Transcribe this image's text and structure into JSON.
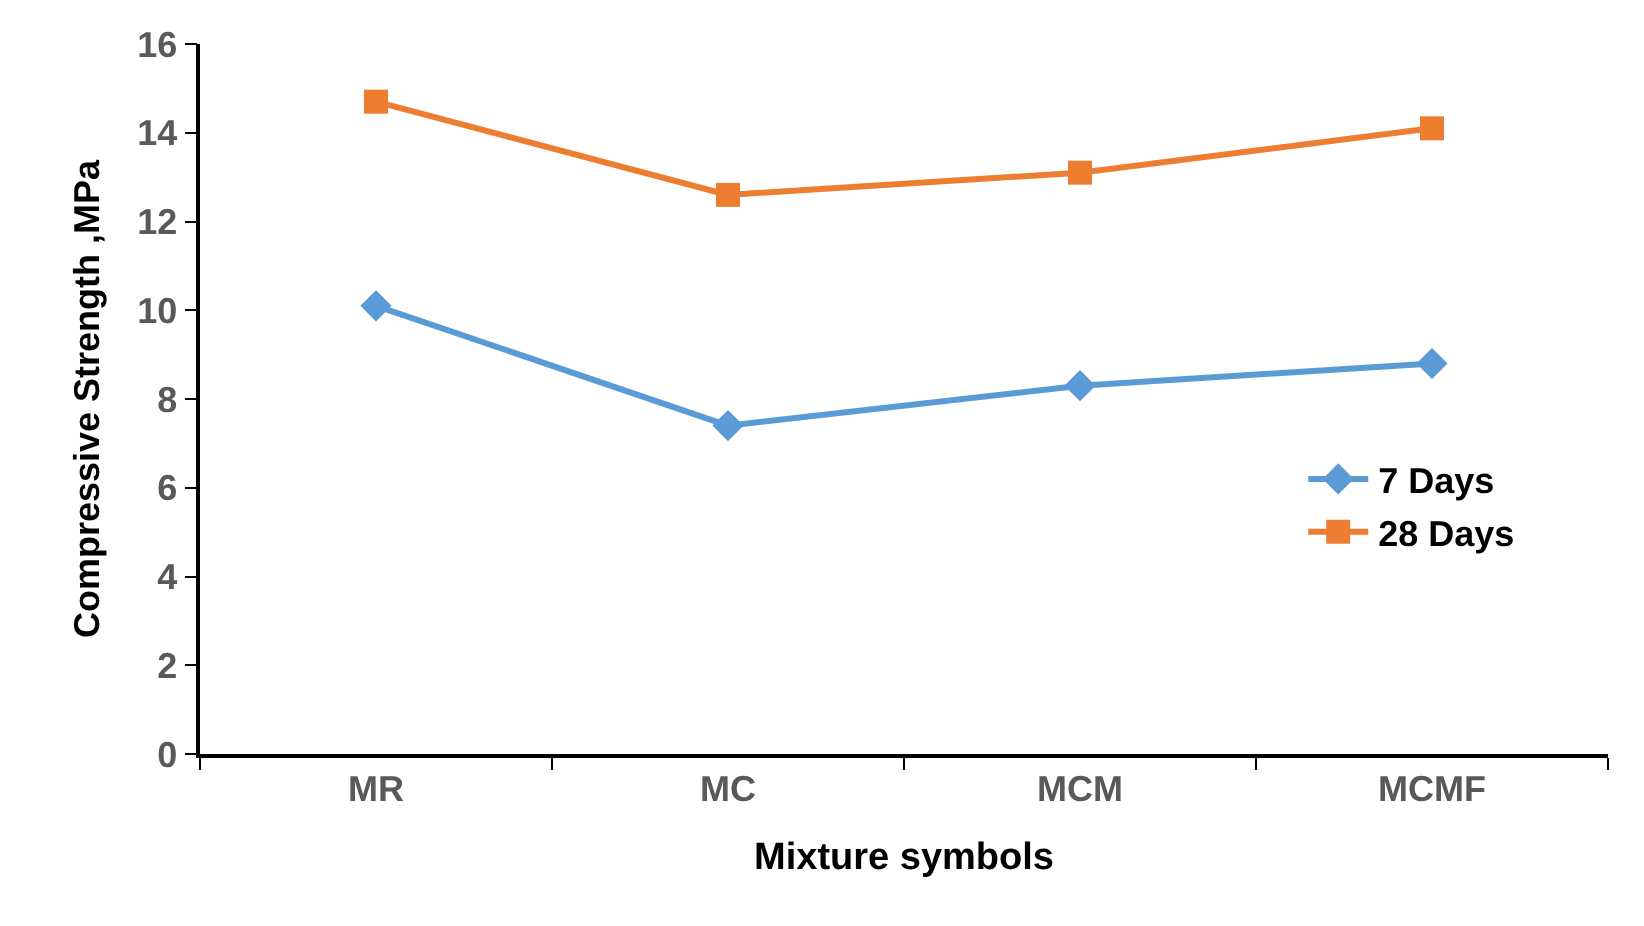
{
  "chart_data": {
    "type": "line",
    "xlabel": "Mixture symbols",
    "ylabel": "Compressive Strength ,MPa",
    "categories": [
      "MR",
      "MC",
      "MCM",
      "MCMF"
    ],
    "series": [
      {
        "name": "7 Days",
        "color": "#5b9bd5",
        "marker": "diamond",
        "values": [
          10.1,
          7.4,
          8.3,
          8.8
        ]
      },
      {
        "name": "28 Days",
        "color": "#ed7d31",
        "marker": "square",
        "values": [
          14.7,
          12.6,
          13.1,
          14.1
        ]
      }
    ],
    "ylim": [
      0,
      16
    ],
    "yticks": [
      0,
      2,
      4,
      6,
      8,
      10,
      12,
      14,
      16
    ],
    "grid": false,
    "legend": "right",
    "line_style": "solid"
  }
}
